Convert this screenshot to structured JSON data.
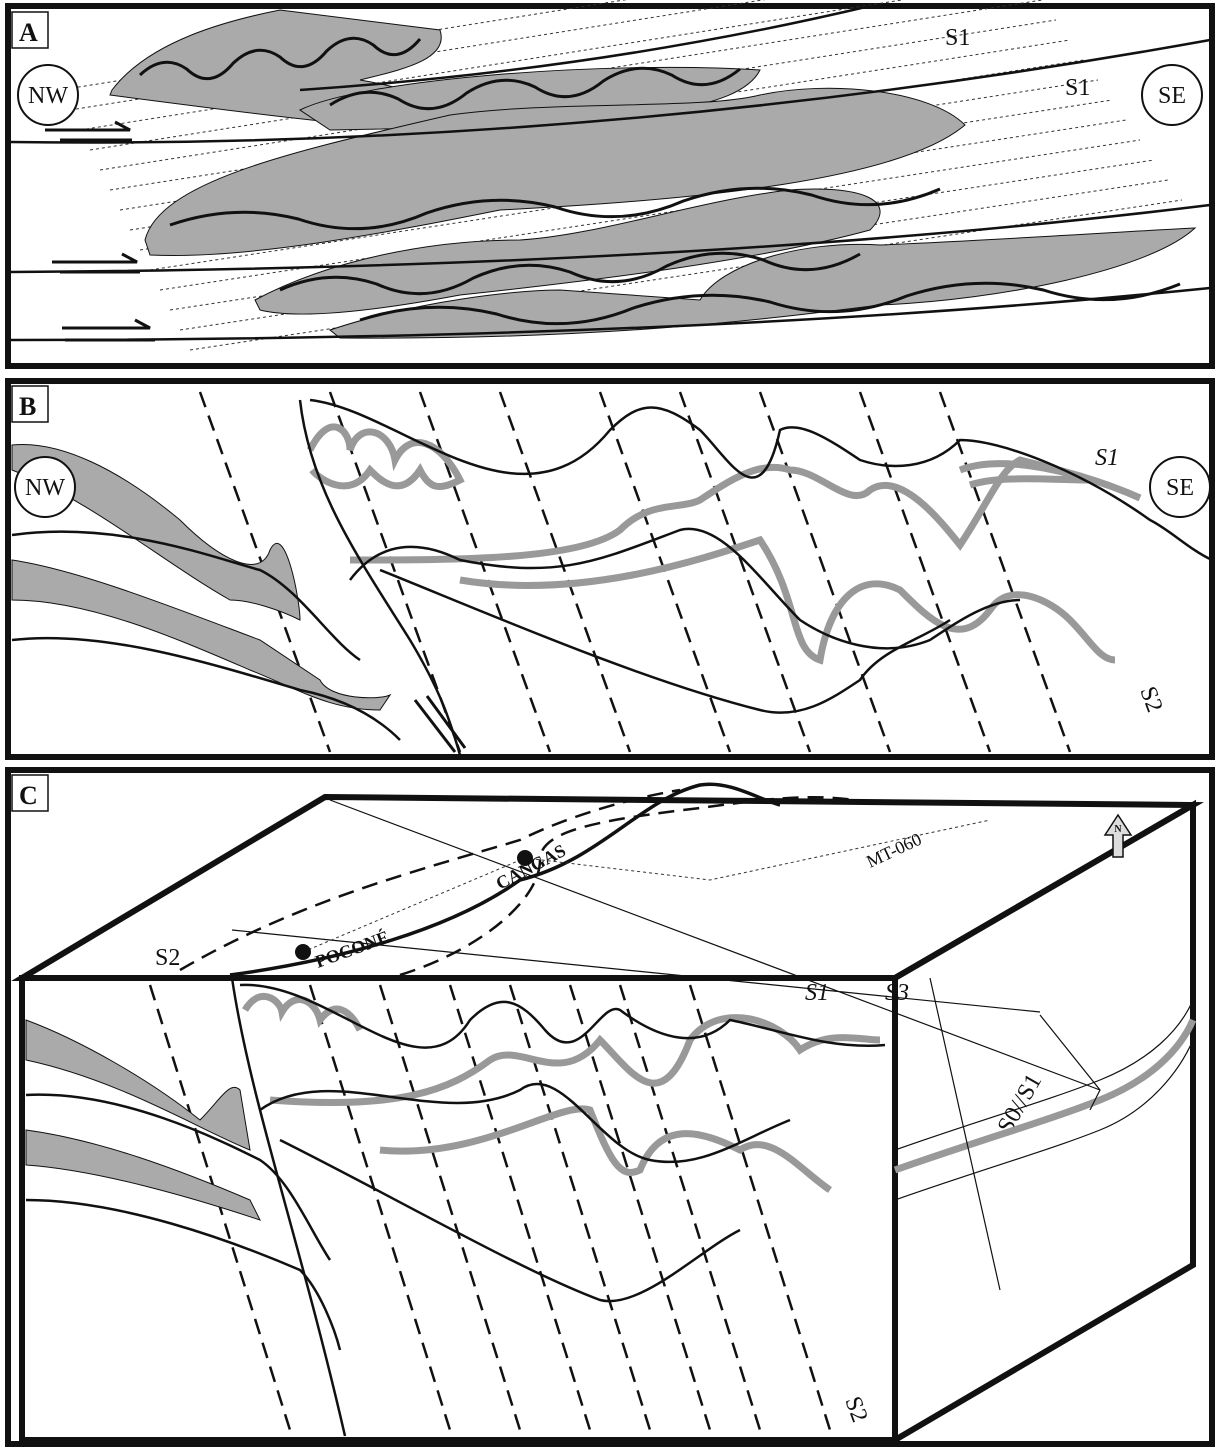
{
  "panels": [
    {
      "label": "A",
      "left": "NW",
      "right": "SE",
      "foliation_labels": [
        "S1",
        "S1"
      ]
    },
    {
      "label": "B",
      "left": "NW",
      "right": "SE",
      "foliation_labels": [
        "S1",
        "S2"
      ]
    },
    {
      "label": "C",
      "north": "N",
      "traverse": "MT-060",
      "towns": [
        "CANGAS",
        "POCONÉ"
      ],
      "foliation_labels": [
        "S2",
        "S3",
        "S0//S1",
        "S1",
        "S2"
      ]
    }
  ]
}
